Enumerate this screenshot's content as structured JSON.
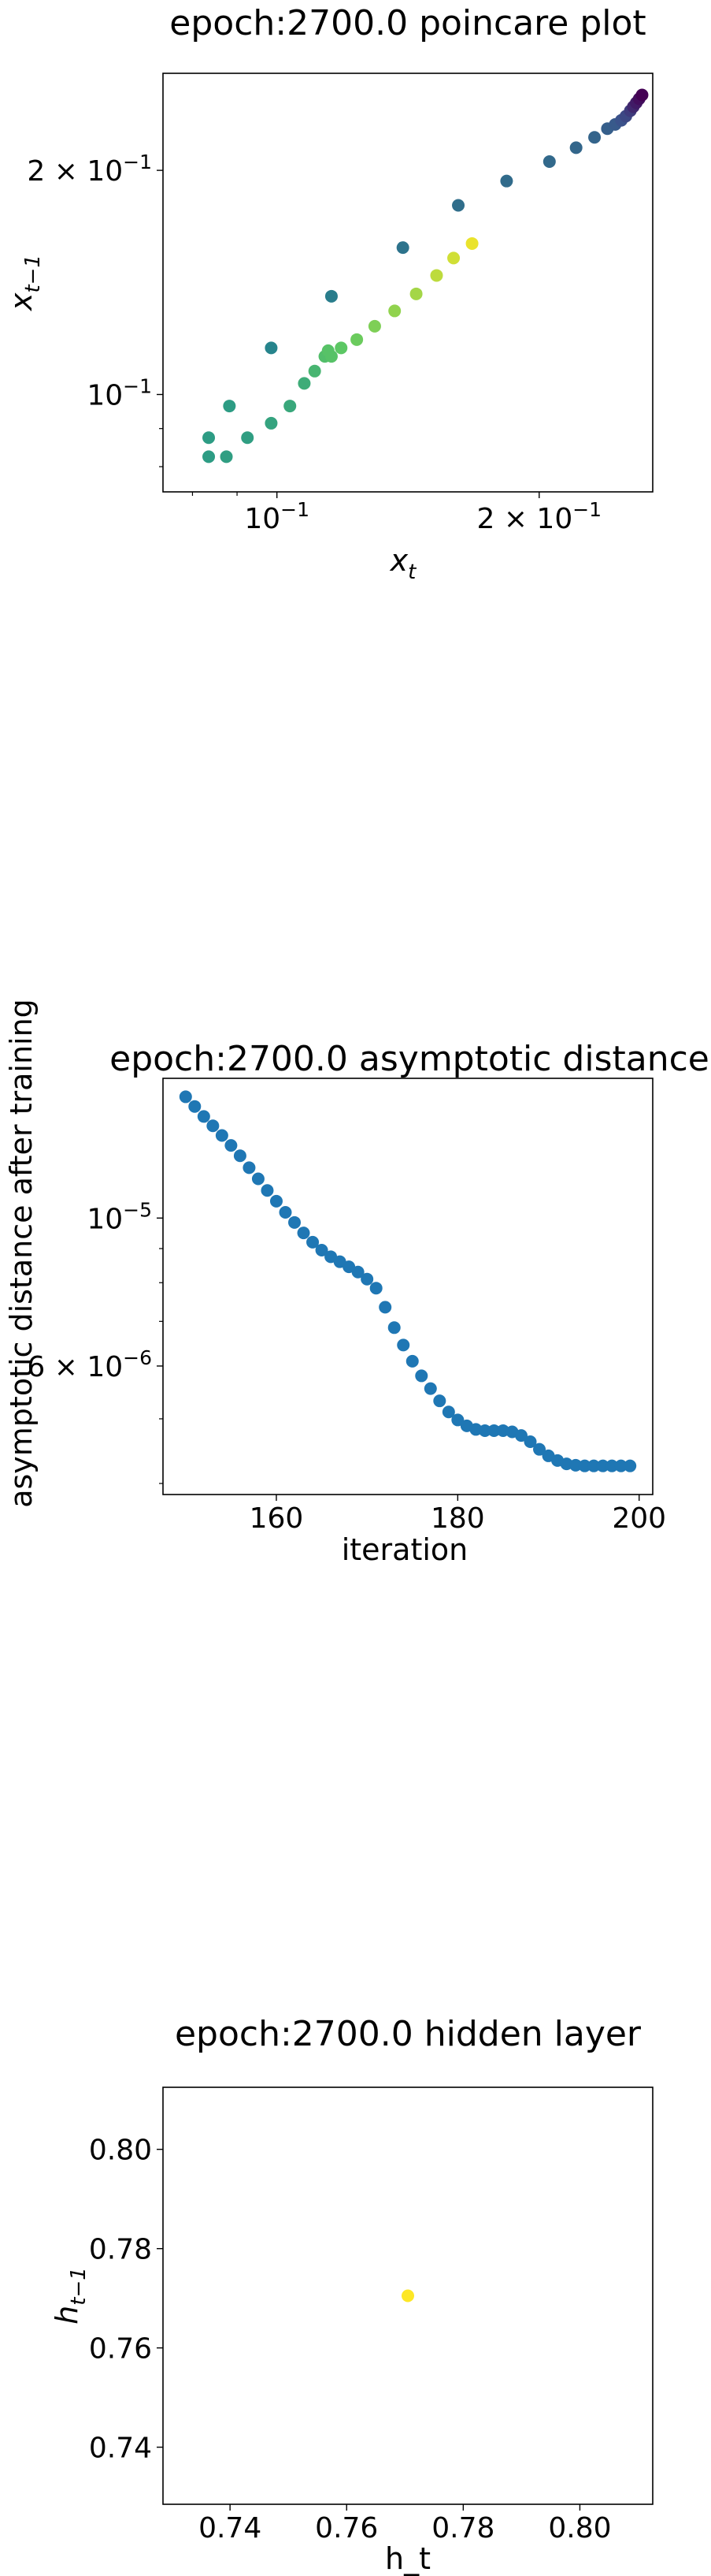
{
  "chart_data": [
    {
      "type": "scatter",
      "title": "epoch:2700.0 poincare plot",
      "xlabel": "x_t",
      "ylabel": "x_t−1",
      "xscale": "log",
      "yscale": "log",
      "xlim": [
        0.074,
        0.27
      ],
      "ylim": [
        0.074,
        0.27
      ],
      "xticks": [
        {
          "value": 0.1,
          "base": "10",
          "exp": "−1"
        },
        {
          "value": 0.2,
          "base": "2 × 10",
          "exp": "−1"
        }
      ],
      "yticks": [
        {
          "value": 0.1,
          "base": "10",
          "exp": "−1"
        },
        {
          "value": 0.2,
          "base": "2 × 10",
          "exp": "−1"
        }
      ],
      "grid": false,
      "colormap": "viridis",
      "points": [
        {
          "x": 0.0835,
          "y": 0.0875,
          "c": 0.55
        },
        {
          "x": 0.0835,
          "y": 0.0825,
          "c": 0.55
        },
        {
          "x": 0.0875,
          "y": 0.0825,
          "c": 0.56
        },
        {
          "x": 0.0882,
          "y": 0.0965,
          "c": 0.55
        },
        {
          "x": 0.0925,
          "y": 0.0875,
          "c": 0.56
        },
        {
          "x": 0.0985,
          "y": 0.0915,
          "c": 0.58
        },
        {
          "x": 0.0985,
          "y": 0.1155,
          "c": 0.45
        },
        {
          "x": 0.1035,
          "y": 0.0965,
          "c": 0.6
        },
        {
          "x": 0.1075,
          "y": 0.1035,
          "c": 0.62
        },
        {
          "x": 0.1105,
          "y": 0.1075,
          "c": 0.66
        },
        {
          "x": 0.1135,
          "y": 0.1125,
          "c": 0.7
        },
        {
          "x": 0.1145,
          "y": 0.1145,
          "c": 0.72
        },
        {
          "x": 0.1155,
          "y": 0.1125,
          "c": 0.72
        },
        {
          "x": 0.1155,
          "y": 0.1355,
          "c": 0.42
        },
        {
          "x": 0.1185,
          "y": 0.1155,
          "c": 0.74
        },
        {
          "x": 0.1235,
          "y": 0.1185,
          "c": 0.77
        },
        {
          "x": 0.1295,
          "y": 0.1235,
          "c": 0.8
        },
        {
          "x": 0.1365,
          "y": 0.1295,
          "c": 0.83
        },
        {
          "x": 0.1395,
          "y": 0.1575,
          "c": 0.38
        },
        {
          "x": 0.1445,
          "y": 0.1365,
          "c": 0.86
        },
        {
          "x": 0.1525,
          "y": 0.1445,
          "c": 0.9
        },
        {
          "x": 0.1595,
          "y": 0.1525,
          "c": 0.93
        },
        {
          "x": 0.1615,
          "y": 0.1795,
          "c": 0.36
        },
        {
          "x": 0.1675,
          "y": 0.1595,
          "c": 0.97
        },
        {
          "x": 0.1835,
          "y": 0.1935,
          "c": 0.35
        },
        {
          "x": 0.2055,
          "y": 0.2055,
          "c": 0.34
        },
        {
          "x": 0.2205,
          "y": 0.2145,
          "c": 0.33
        },
        {
          "x": 0.2315,
          "y": 0.2215,
          "c": 0.32
        },
        {
          "x": 0.2395,
          "y": 0.2275,
          "c": 0.3
        },
        {
          "x": 0.2445,
          "y": 0.2305,
          "c": 0.28
        },
        {
          "x": 0.2485,
          "y": 0.2335,
          "c": 0.25
        },
        {
          "x": 0.2515,
          "y": 0.2365,
          "c": 0.22
        },
        {
          "x": 0.2545,
          "y": 0.2405,
          "c": 0.18
        },
        {
          "x": 0.2565,
          "y": 0.2435,
          "c": 0.12
        },
        {
          "x": 0.2585,
          "y": 0.2465,
          "c": 0.08
        },
        {
          "x": 0.2605,
          "y": 0.2495,
          "c": 0.04
        },
        {
          "x": 0.2625,
          "y": 0.2525,
          "c": 0.0
        }
      ]
    },
    {
      "type": "scatter",
      "title": "epoch:2700.0 asymptotic distance",
      "xlabel": "iteration",
      "ylabel": "asymptotic distance after training",
      "yscale": "log",
      "xlim": [
        147.5,
        201.5
      ],
      "ylim": [
        3.85e-06,
        1.62e-05
      ],
      "xticks": [
        {
          "value": 160,
          "label": "160"
        },
        {
          "value": 180,
          "label": "180"
        },
        {
          "value": 200,
          "label": "200"
        }
      ],
      "yticks": [
        {
          "value": 1e-05,
          "base": "10",
          "exp": "−5"
        },
        {
          "value": 6e-06,
          "base": "6 × 10",
          "exp": "−6"
        }
      ],
      "grid": false,
      "color": "#1f77b4",
      "x": [
        150,
        151,
        152,
        153,
        154,
        155,
        156,
        157,
        158,
        159,
        160,
        161,
        162,
        163,
        164,
        165,
        166,
        167,
        168,
        169,
        170,
        171,
        172,
        173,
        174,
        175,
        176,
        177,
        178,
        179,
        180,
        181,
        182,
        183,
        184,
        185,
        186,
        187,
        188,
        189,
        190,
        191,
        192,
        193,
        194,
        195,
        196,
        197,
        198,
        199
      ],
      "y": [
        1.52e-05,
        1.47e-05,
        1.42e-05,
        1.375e-05,
        1.33e-05,
        1.285e-05,
        1.24e-05,
        1.19e-05,
        1.145e-05,
        1.1e-05,
        1.06e-05,
        1.02e-05,
        9.85e-06,
        9.5e-06,
        9.2e-06,
        8.95e-06,
        8.75e-06,
        8.6e-06,
        8.45e-06,
        8.3e-06,
        8.1e-06,
        7.85e-06,
        7.35e-06,
        6.85e-06,
        6.45e-06,
        6.1e-06,
        5.8e-06,
        5.55e-06,
        5.32e-06,
        5.12e-06,
        4.98e-06,
        4.88e-06,
        4.82e-06,
        4.8e-06,
        4.8e-06,
        4.8e-06,
        4.78e-06,
        4.72e-06,
        4.62e-06,
        4.5e-06,
        4.4e-06,
        4.33e-06,
        4.28e-06,
        4.26e-06,
        4.25e-06,
        4.25e-06,
        4.25e-06,
        4.25e-06,
        4.25e-06,
        4.25e-06
      ]
    },
    {
      "type": "scatter",
      "title": "epoch:2700.0 hidden layer",
      "xlabel": "h_t",
      "ylabel": "h_t−1",
      "xlim": [
        0.7285,
        0.8125
      ],
      "ylim": [
        0.7285,
        0.8125
      ],
      "xticks": [
        {
          "value": 0.74,
          "label": "0.74"
        },
        {
          "value": 0.76,
          "label": "0.76"
        },
        {
          "value": 0.78,
          "label": "0.78"
        },
        {
          "value": 0.8,
          "label": "0.80"
        }
      ],
      "yticks": [
        {
          "value": 0.74,
          "label": "0.74"
        },
        {
          "value": 0.76,
          "label": "0.76"
        },
        {
          "value": 0.78,
          "label": "0.78"
        },
        {
          "value": 0.8,
          "label": "0.80"
        }
      ],
      "grid": false,
      "color": "#fde725",
      "points": [
        {
          "x": 0.7705,
          "y": 0.7705
        }
      ]
    }
  ]
}
